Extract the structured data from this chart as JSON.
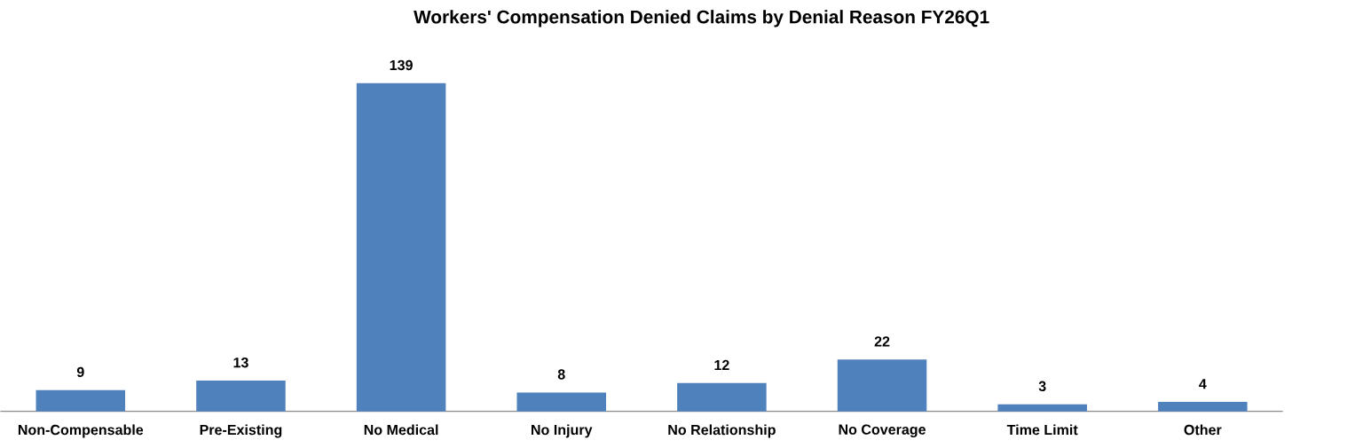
{
  "chart_data": {
    "type": "bar",
    "title": "Workers' Compensation Denied Claims by Denial Reason FY26Q1",
    "categories": [
      "Non-Compensable",
      "Pre-Existing",
      "No Medical",
      "No Injury",
      "No Relationship",
      "No Coverage",
      "Time Limit",
      "Other"
    ],
    "values": [
      9,
      13,
      139,
      8,
      12,
      22,
      3,
      4
    ],
    "color": "#4f81bd",
    "data_labels": true
  }
}
